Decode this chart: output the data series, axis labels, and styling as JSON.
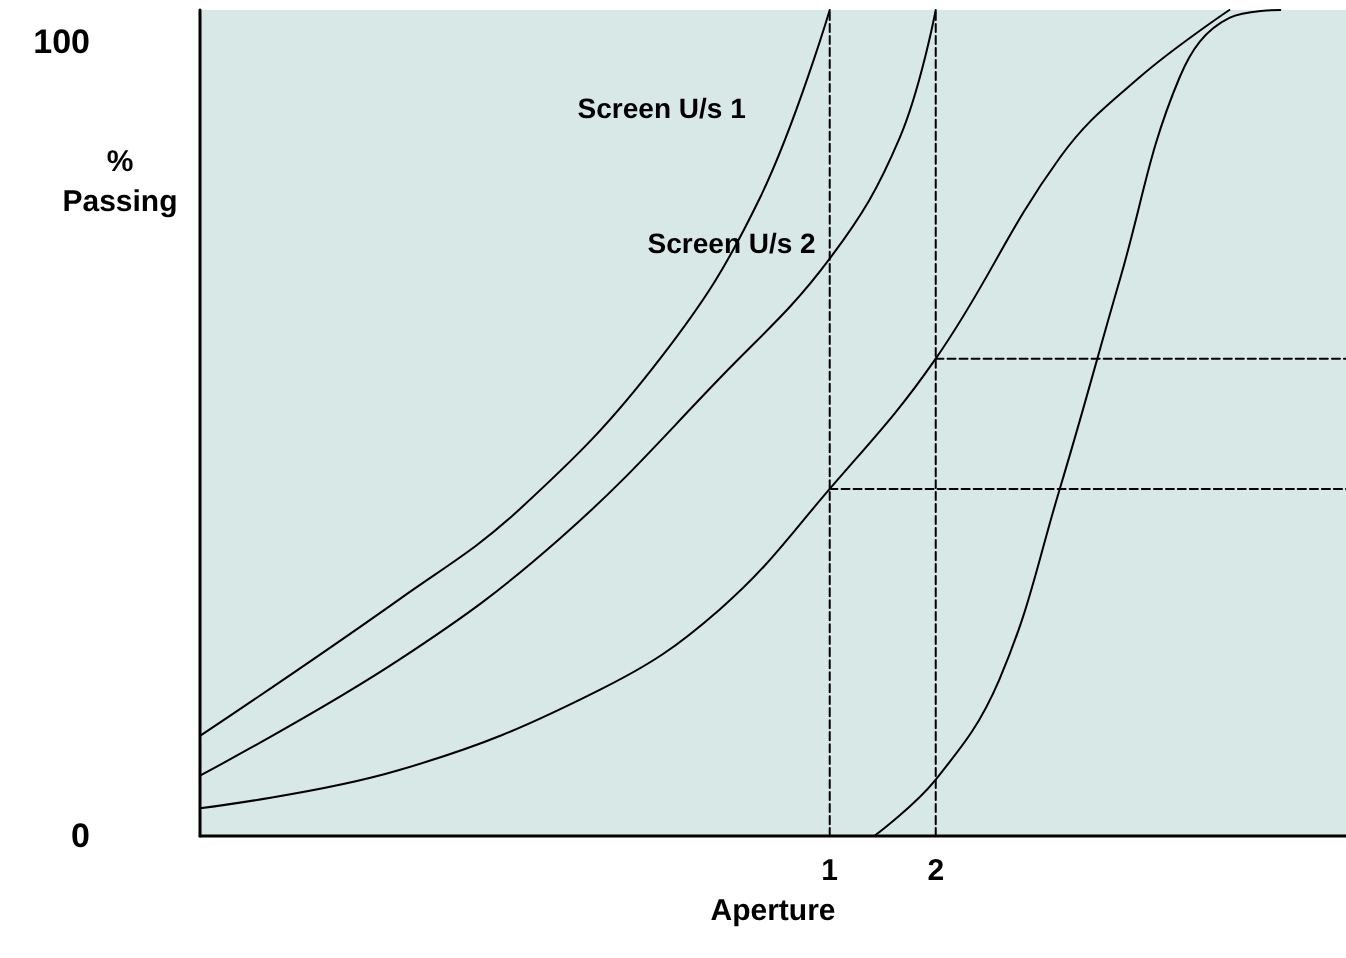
{
  "chart_data": {
    "type": "line",
    "xlabel": "Aperture",
    "ylabel": "%\nPassing",
    "xlim": [
      -4.94,
      5.87
    ],
    "xticks": [
      1,
      2
    ],
    "ylim": [
      0,
      104
    ],
    "yticks": [
      0,
      100
    ],
    "grid": false,
    "legend": false,
    "marker": "none",
    "series": [
      {
        "name": "Screen U/s 1",
        "color": "#000000",
        "x": [
          -4.94,
          -3.06,
          -1.92,
          -0.6,
          0.34,
          1
        ],
        "values": [
          12.6,
          29.8,
          41.2,
          60.1,
          80.3,
          104
        ]
      },
      {
        "name": "Screen U/s 2",
        "color": "#000000",
        "x": [
          -4.94,
          -3.06,
          -1.55,
          -0.04,
          1,
          1.66,
          2
        ],
        "values": [
          7.6,
          22.2,
          37.4,
          57.6,
          72.7,
          87.9,
          104
        ]
      },
      {
        "color": "#000000",
        "x": [
          -4.94,
          -3.06,
          -1.17,
          -0.04,
          1,
          2,
          3.17,
          3.92,
          4.77
        ],
        "values": [
          3.5,
          8.3,
          18.4,
          28.5,
          43.7,
          60.1,
          85.4,
          95.5,
          104
        ]
      },
      {
        "color": "#000000",
        "x": [
          1.42,
          2,
          2.6,
          3.17,
          3.74,
          4.3,
          4.77,
          5.25
        ],
        "values": [
          0,
          7.1,
          19.7,
          43.7,
          70.2,
          95.5,
          103,
          104
        ]
      },
      {
        "color": "#000000",
        "line_style": "dashed",
        "x": [
          1,
          1
        ],
        "values": [
          0,
          104
        ]
      },
      {
        "color": "#000000",
        "line_style": "dashed",
        "x": [
          2,
          2
        ],
        "values": [
          0,
          104
        ]
      },
      {
        "color": "#000000",
        "line_style": "dashed",
        "x": [
          1,
          5.87
        ],
        "values": [
          43.7,
          43.7
        ]
      },
      {
        "color": "#000000",
        "line_style": "dashed",
        "x": [
          2,
          5.87
        ],
        "values": [
          60.1,
          60.1
        ]
      }
    ]
  }
}
